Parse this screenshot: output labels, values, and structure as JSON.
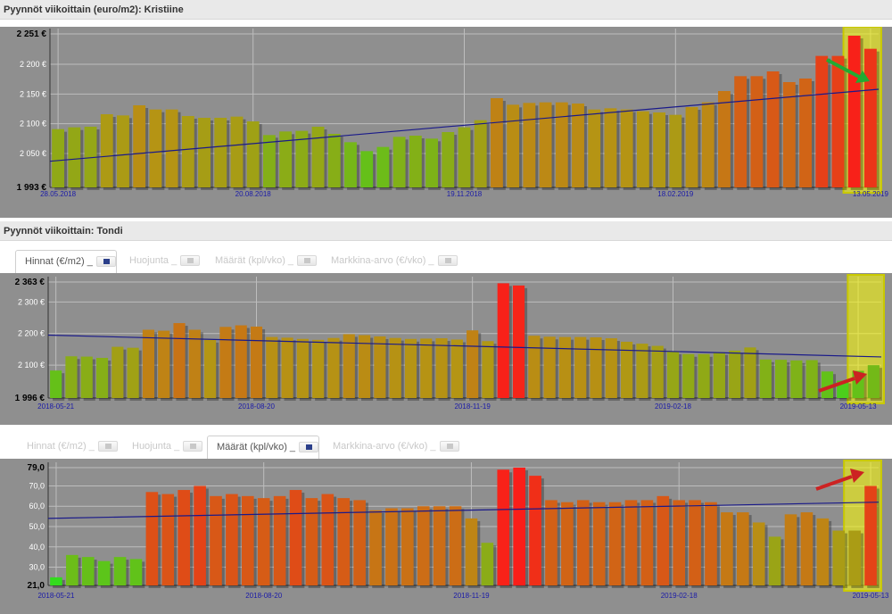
{
  "kristiine": {
    "title": "Pyynnöt viikoittain (euro/m2): Kristiine"
  },
  "tondi": {
    "title": "Pyynnöt viikoittain: Tondi",
    "tabs_top": [
      {
        "label": "Hinnat (€/m2) _",
        "active": true
      },
      {
        "label": "Huojunta _",
        "active": false
      },
      {
        "label": "Määrät (kpl/vko) _",
        "active": false
      },
      {
        "label": "Markkina-arvo (€/vko) _",
        "active": false
      }
    ],
    "tabs_bottom": [
      {
        "label": "Hinnat (€/m2) _",
        "active": false
      },
      {
        "label": "Huojunta _",
        "active": false
      },
      {
        "label": "Määrät (kpl/vko) _",
        "active": true
      },
      {
        "label": "Markkina-arvo (€/vko) _",
        "active": false
      }
    ]
  },
  "chart_data": [
    {
      "type": "bar",
      "ylim": [
        1993,
        2251
      ],
      "yticks": [
        {
          "label": "2 251 €",
          "value": 2251,
          "bold": true
        },
        {
          "label": "2 200 €",
          "value": 2200
        },
        {
          "label": "2 150 €",
          "value": 2150
        },
        {
          "label": "2 100 €",
          "value": 2100
        },
        {
          "label": "2 050 €",
          "value": 2050
        },
        {
          "label": "1 993 €",
          "value": 1993,
          "bold": true
        }
      ],
      "xticks": [
        {
          "label": "28.05.2018",
          "index": 0
        },
        {
          "label": "20.08.2018",
          "index": 12
        },
        {
          "label": "19.11.2018",
          "index": 25
        },
        {
          "label": "18.02.2019",
          "index": 38
        },
        {
          "label": "13.05.2019",
          "index": 50
        }
      ],
      "values": [
        2091,
        2094,
        2095,
        2116,
        2114,
        2131,
        2124,
        2124,
        2113,
        2110,
        2110,
        2112,
        2104,
        2081,
        2087,
        2088,
        2095,
        2083,
        2069,
        2054,
        2061,
        2078,
        2080,
        2075,
        2086,
        2094,
        2106,
        2143,
        2132,
        2135,
        2136,
        2136,
        2134,
        2124,
        2126,
        2124,
        2121,
        2119,
        2115,
        2128,
        2136,
        2155,
        2180,
        2180,
        2188,
        2170,
        2176,
        2214,
        2214,
        2248,
        2226
      ],
      "trend": [
        2037,
        2158
      ],
      "highlight_last": 2,
      "grid": true
    },
    {
      "type": "bar",
      "ylim": [
        1996,
        2363
      ],
      "yticks": [
        {
          "label": "2 363 €",
          "value": 2363,
          "bold": true
        },
        {
          "label": "2 300 €",
          "value": 2300
        },
        {
          "label": "2 200 €",
          "value": 2200
        },
        {
          "label": "2 100 €",
          "value": 2100
        },
        {
          "label": "1 996 €",
          "value": 1996,
          "bold": true
        }
      ],
      "xticks": [
        {
          "label": "2018-05-21",
          "index": 0
        },
        {
          "label": "2018-08-20",
          "index": 13
        },
        {
          "label": "2018-11-19",
          "index": 27
        },
        {
          "label": "2019-02-18",
          "index": 40
        },
        {
          "label": "2019-05-13",
          "index": 52
        }
      ],
      "values": [
        2083,
        2128,
        2127,
        2123,
        2158,
        2155,
        2212,
        2209,
        2233,
        2212,
        2180,
        2221,
        2226,
        2222,
        2189,
        2187,
        2183,
        2180,
        2186,
        2198,
        2195,
        2191,
        2186,
        2183,
        2184,
        2185,
        2181,
        2210,
        2176,
        2359,
        2352,
        2193,
        2190,
        2189,
        2189,
        2188,
        2185,
        2174,
        2168,
        2161,
        2143,
        2135,
        2135,
        2141,
        2146,
        2156,
        2118,
        2117,
        2115,
        2116,
        2080,
        2051,
        2082,
        2100
      ],
      "trend": [
        2195,
        2126
      ],
      "highlight_last": 2,
      "grid": true
    },
    {
      "type": "bar",
      "ylim": [
        21.0,
        79.0
      ],
      "yticks": [
        {
          "label": "79,0",
          "value": 79,
          "bold": true
        },
        {
          "label": "70,0",
          "value": 70
        },
        {
          "label": "60,0",
          "value": 60
        },
        {
          "label": "50,0",
          "value": 50
        },
        {
          "label": "40,0",
          "value": 40
        },
        {
          "label": "30,0",
          "value": 30
        },
        {
          "label": "21,0",
          "value": 21,
          "bold": true
        }
      ],
      "xticks": [
        {
          "label": "2018-05-21",
          "index": 0
        },
        {
          "label": "2018-08-20",
          "index": 13
        },
        {
          "label": "2018-11-19",
          "index": 26
        },
        {
          "label": "2019-02-18",
          "index": 39
        },
        {
          "label": "2019-05-13",
          "index": 51
        }
      ],
      "values": [
        25,
        36,
        35,
        33,
        35,
        34,
        67,
        66,
        68,
        70,
        65,
        66,
        65,
        64,
        65,
        68,
        64,
        66,
        64,
        63,
        58,
        59,
        59,
        60,
        60,
        60,
        54,
        42,
        78,
        79,
        75,
        63,
        62,
        63,
        62,
        62,
        63,
        63,
        65,
        63,
        63,
        62,
        57,
        57,
        52,
        45,
        56,
        57,
        54,
        48,
        48,
        70
      ],
      "trend": [
        54,
        62
      ],
      "highlight_last": 2,
      "grid": true
    }
  ]
}
